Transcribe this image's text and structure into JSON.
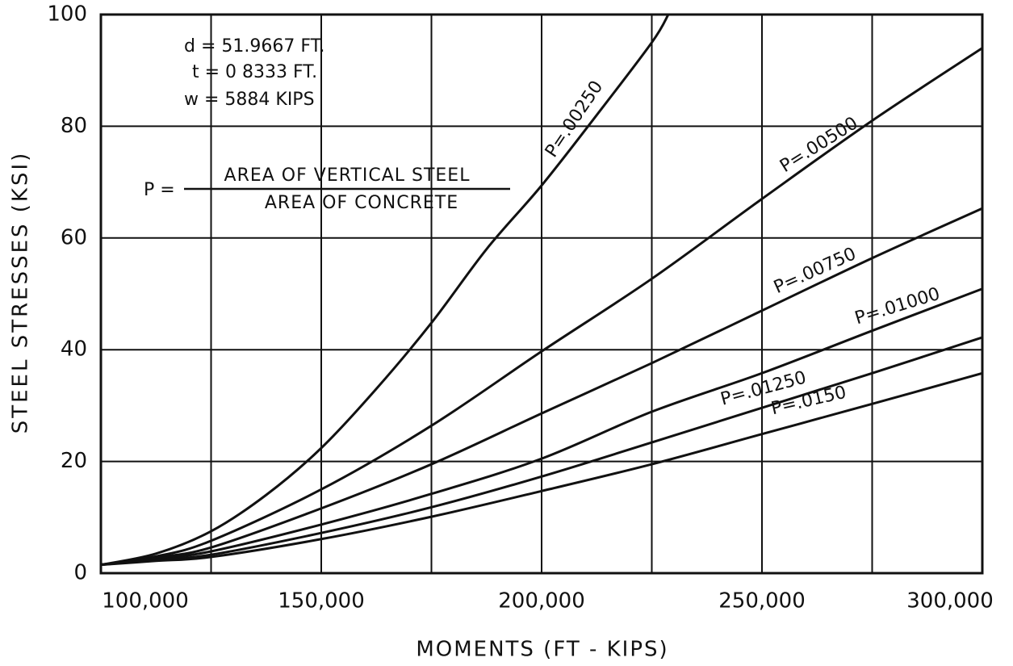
{
  "chart_data": {
    "type": "line",
    "xlabel": "MOMENTS (FT - KIPS)",
    "ylabel": "STEEL STRESSES (KSI)",
    "xlim": [
      100000,
      300000
    ],
    "ylim": [
      0,
      100
    ],
    "xticks": [
      {
        "value": 100000,
        "label": "100,000"
      },
      {
        "value": 150000,
        "label": "150,000"
      },
      {
        "value": 200000,
        "label": "200,000"
      },
      {
        "value": 250000,
        "label": "250,000"
      },
      {
        "value": 300000,
        "label": "300,000"
      }
    ],
    "xminor": [
      125000,
      175000,
      225000,
      275000
    ],
    "yticks": [
      0,
      20,
      40,
      60,
      80,
      100
    ],
    "grid": true,
    "color": "#111111",
    "annotations": [
      "d = 51.9667 FT.",
      "t = 0 8333 FT.",
      "w = 5884 KIPS"
    ],
    "formula": {
      "lhs": "P =",
      "numerator": "AREA OF VERTICAL STEEL",
      "denominator": "AREA OF CONCRETE"
    },
    "series": [
      {
        "name": "P=.00250",
        "x": [
          100000,
          112500,
          125000,
          137500,
          150000,
          162500,
          175000,
          187500,
          200000,
          212500,
          225000,
          228750
        ],
        "values": [
          1.5,
          3.5,
          7.5,
          14,
          22.4,
          33,
          44.8,
          58,
          69.4,
          82,
          95,
          100
        ]
      },
      {
        "name": "P=.00500",
        "x": [
          100000,
          112500,
          125000,
          150000,
          175000,
          200000,
          225000,
          250000,
          275000,
          300000
        ],
        "values": [
          1.5,
          3,
          5.8,
          15,
          26.4,
          39.7,
          52.7,
          67,
          81,
          94
        ]
      },
      {
        "name": "P=.00750",
        "x": [
          100000,
          112500,
          125000,
          150000,
          175000,
          200000,
          225000,
          250000,
          275000,
          300000
        ],
        "values": [
          1.5,
          2.8,
          4.6,
          11.6,
          19.5,
          28.6,
          37.6,
          47,
          56.4,
          65.3
        ]
      },
      {
        "name": "P=.01000",
        "x": [
          100000,
          112500,
          125000,
          150000,
          175000,
          200000,
          225000,
          250000,
          275000,
          300000
        ],
        "values": [
          1.5,
          2.6,
          3.9,
          8.7,
          14.2,
          20.5,
          28.9,
          35.8,
          43.4,
          50.9
        ]
      },
      {
        "name": "P=.01250",
        "x": [
          100000,
          112500,
          125000,
          150000,
          175000,
          200000,
          225000,
          250000,
          275000,
          300000
        ],
        "values": [
          1.5,
          2.4,
          3.3,
          7.2,
          11.8,
          17.3,
          23.4,
          29.6,
          35.8,
          42.2
        ]
      },
      {
        "name": "P=.0150",
        "x": [
          100000,
          112500,
          125000,
          150000,
          175000,
          200000,
          225000,
          250000,
          275000,
          300000
        ],
        "values": [
          1.5,
          2.2,
          2.9,
          6.1,
          10.1,
          14.7,
          19.5,
          24.9,
          30.3,
          35.8
        ]
      }
    ]
  }
}
